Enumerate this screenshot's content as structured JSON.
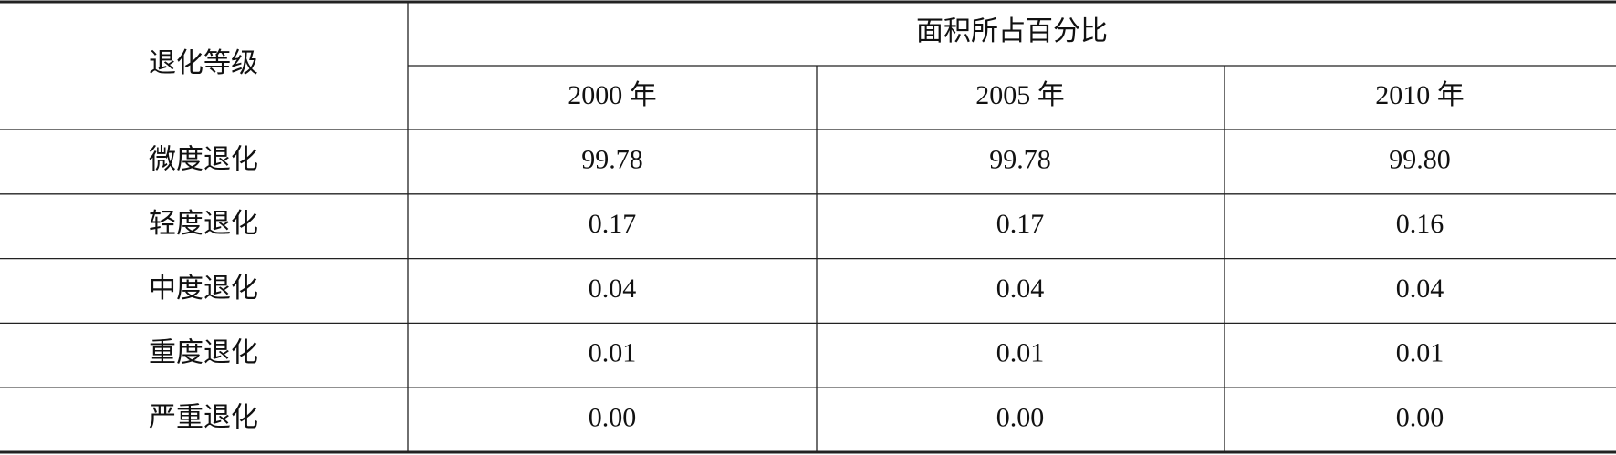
{
  "header": {
    "row_header": "退化等级",
    "group": "面积所占百分比",
    "years": [
      "2000 年",
      "2005 年",
      "2010 年"
    ]
  },
  "table": {
    "rows": [
      [
        "微度退化",
        "99.78",
        "99.78",
        "99.80"
      ],
      [
        "轻度退化",
        "0.17",
        "0.17",
        "0.16"
      ],
      [
        "中度退化",
        "0.04",
        "0.04",
        "0.04"
      ],
      [
        "重度退化",
        "0.01",
        "0.01",
        "0.01"
      ],
      [
        "严重退化",
        "0.00",
        "0.00",
        "0.00"
      ]
    ]
  }
}
